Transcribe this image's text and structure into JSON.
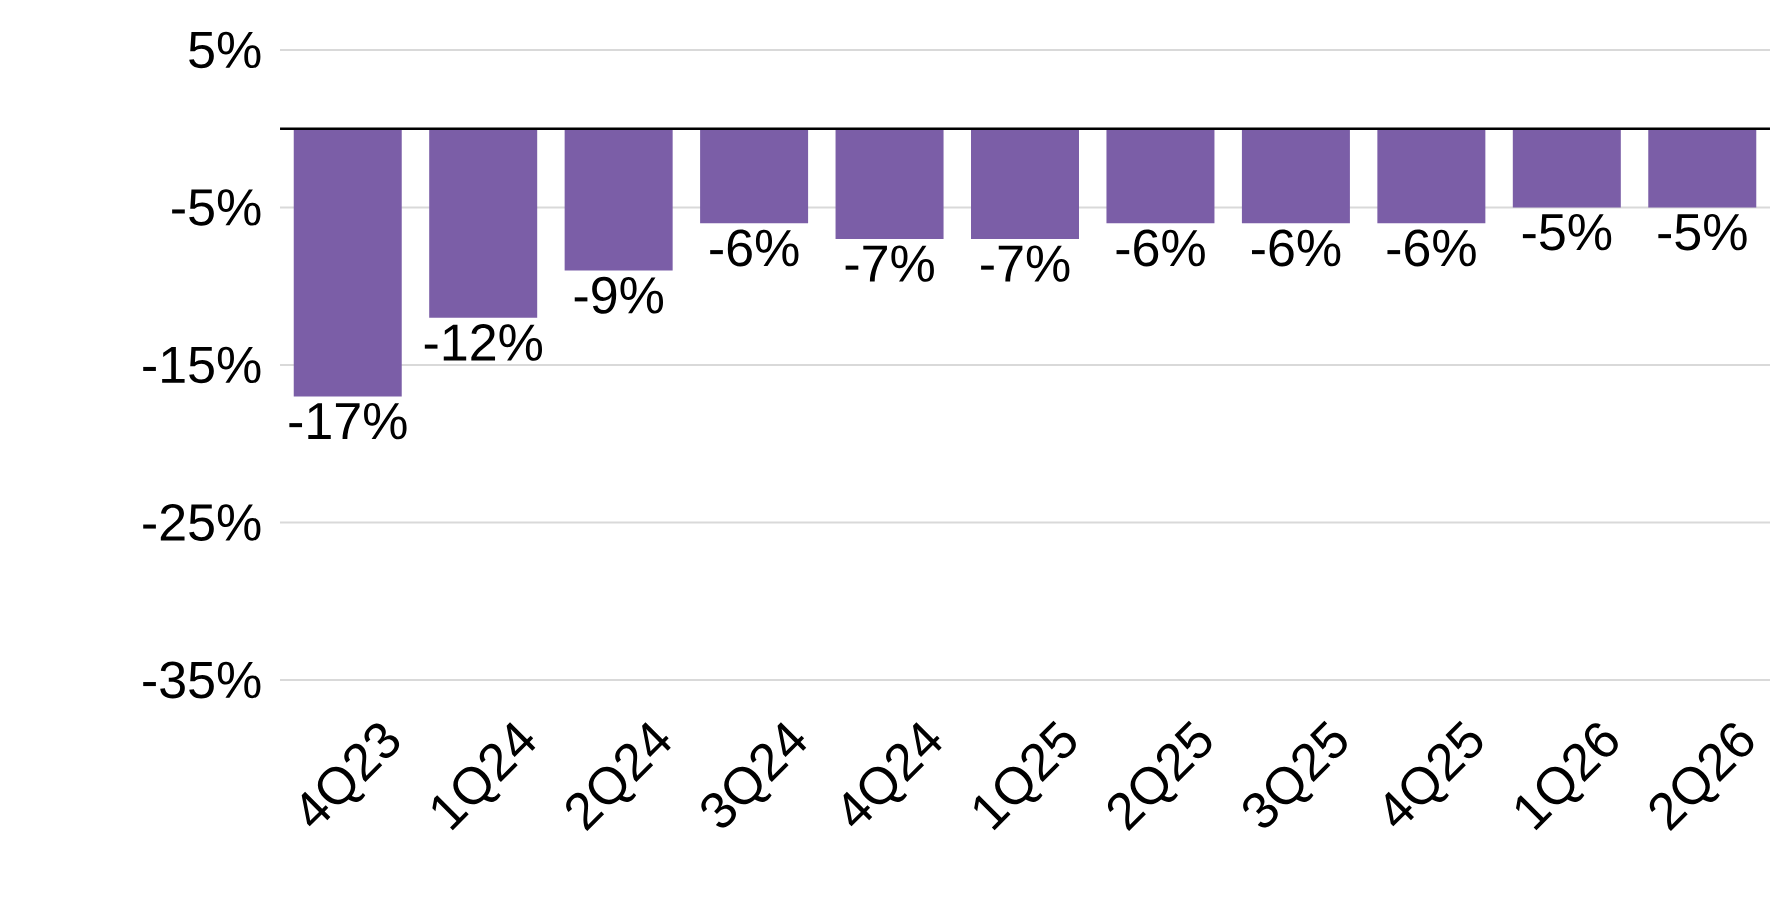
{
  "chart_data": {
    "type": "bar",
    "categories": [
      "4Q23",
      "1Q24",
      "2Q24",
      "3Q24",
      "4Q24",
      "1Q25",
      "2Q25",
      "3Q25",
      "4Q25",
      "1Q26",
      "2Q26"
    ],
    "values": [
      -17,
      -12,
      -9,
      -6,
      -7,
      -7,
      -6,
      -6,
      -6,
      -5,
      -5
    ],
    "value_labels": [
      "-17%",
      "-12%",
      "-9%",
      "-6%",
      "-7%",
      "-7%",
      "-6%",
      "-6%",
      "-6%",
      "-5%",
      "-5%"
    ],
    "color": "#7b5ea7",
    "ylim": [
      -35,
      5
    ],
    "yticks": [
      {
        "value": 5,
        "label": "5%"
      },
      {
        "value": -5,
        "label": "-5%"
      },
      {
        "value": -15,
        "label": "-15%"
      },
      {
        "value": -25,
        "label": "-25%"
      },
      {
        "value": -35,
        "label": "-35%"
      }
    ],
    "grid": "y",
    "ref_lines": [
      {
        "axis": "y",
        "value": 0,
        "color": "#000000"
      }
    ]
  }
}
